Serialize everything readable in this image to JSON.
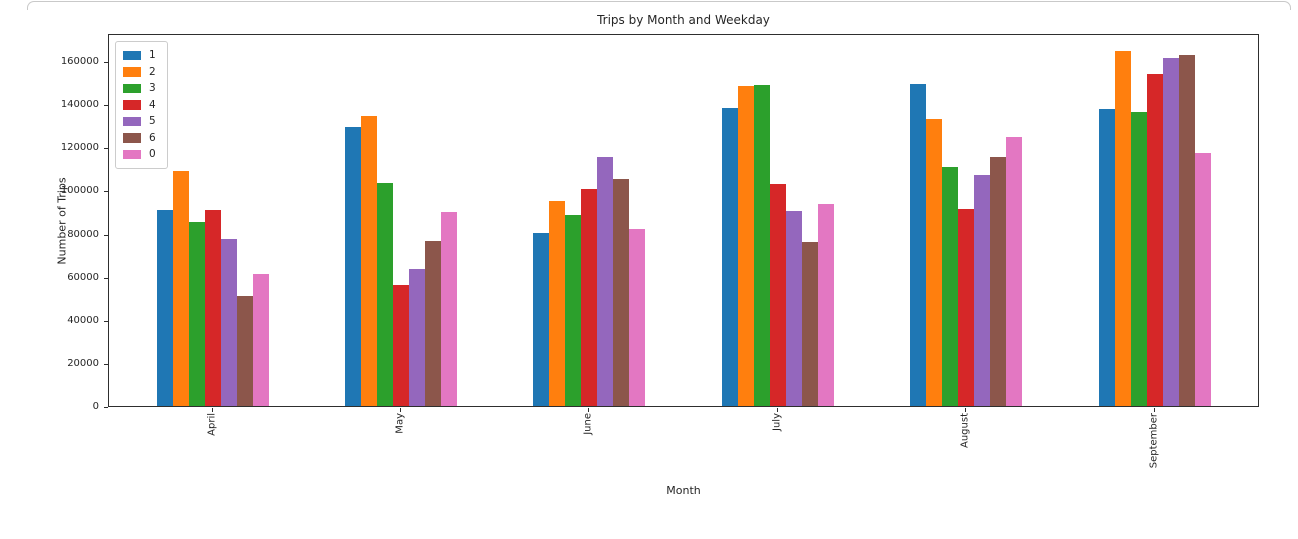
{
  "chart_data": {
    "type": "bar",
    "title": "Trips by Month and Weekday",
    "xlabel": "Month",
    "ylabel": "Number of Trips",
    "categories": [
      "April",
      "May",
      "June",
      "July",
      "August",
      "September"
    ],
    "series": [
      {
        "name": "1",
        "color": "#1f77b4",
        "values": [
          91000,
          129300,
          80200,
          138400,
          149500,
          138000
        ]
      },
      {
        "name": "2",
        "color": "#ff7f0e",
        "values": [
          109000,
          134500,
          95100,
          148500,
          133300,
          164500
        ]
      },
      {
        "name": "3",
        "color": "#2ca02c",
        "values": [
          85500,
          103300,
          88500,
          149000,
          110700,
          136300
        ]
      },
      {
        "name": "4",
        "color": "#d62728",
        "values": [
          90800,
          56200,
          100500,
          102900,
          91500,
          154200
        ]
      },
      {
        "name": "5",
        "color": "#9467bd",
        "values": [
          77500,
          63600,
          115700,
          90600,
          107300,
          161200
        ]
      },
      {
        "name": "6",
        "color": "#8c564b",
        "values": [
          51000,
          76700,
          105500,
          76300,
          115600,
          162700
        ]
      },
      {
        "name": "0",
        "color": "#e377c2",
        "values": [
          61200,
          90200,
          82000,
          93600,
          124600,
          117300
        ]
      }
    ],
    "ylim": [
      0,
      173000
    ],
    "yticks": [
      0,
      20000,
      40000,
      60000,
      80000,
      100000,
      120000,
      140000,
      160000
    ],
    "grid": false,
    "legend_position": "upper left",
    "xtick_rotation": 90,
    "axis_color": "#2e2e2e",
    "text_color": "#262626"
  }
}
